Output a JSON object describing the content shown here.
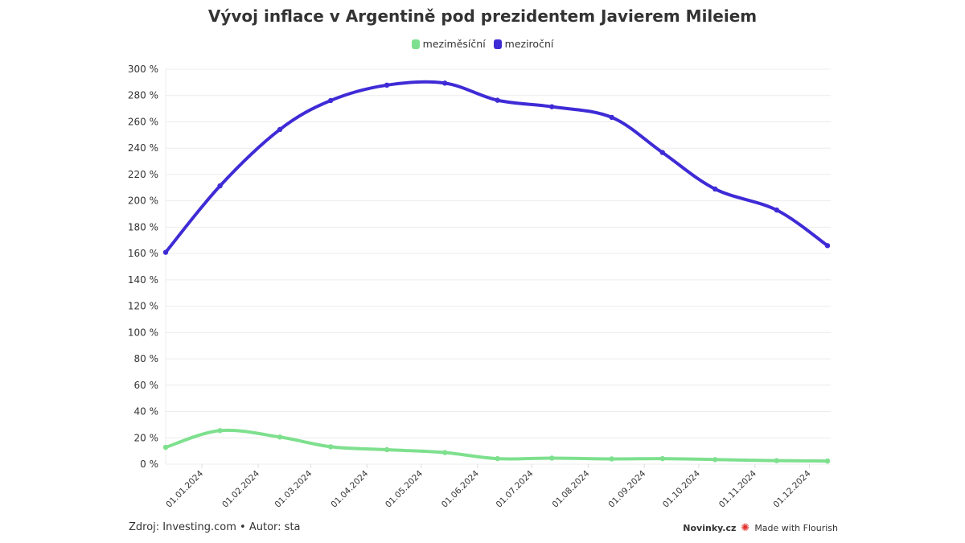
{
  "chart_data": {
    "type": "line",
    "title": "Vývoj inflace v Argentině pod prezidentem Javierem Mileiem",
    "xlabel": "",
    "ylabel": "",
    "ylim": [
      0,
      300
    ],
    "xlim": [
      "2023-12-12",
      "2024-12-11"
    ],
    "grid": true,
    "legend_position": "top",
    "y_ticks": [
      "0 %",
      "20 %",
      "40 %",
      "60 %",
      "80 %",
      "100 %",
      "120 %",
      "140 %",
      "160 %",
      "180 %",
      "200 %",
      "220 %",
      "240 %",
      "260 %",
      "280 %",
      "300 %"
    ],
    "x_ticks": [
      "01.01.2024",
      "01.02.2024",
      "01.03.2024",
      "01.04.2024",
      "01.05.2024",
      "01.06.2024",
      "01.07.2024",
      "01.08.2024",
      "01.09.2024",
      "01.10.2024",
      "01.11.2024",
      "01.12.2024"
    ],
    "x": [
      "2023-12-12",
      "2024-01-11",
      "2024-02-13",
      "2024-03-12",
      "2024-04-12",
      "2024-05-14",
      "2024-06-12",
      "2024-07-12",
      "2024-08-14",
      "2024-09-11",
      "2024-10-10",
      "2024-11-13",
      "2024-12-11"
    ],
    "series": [
      {
        "name": "meziměsíční",
        "color": "#7ee08e",
        "values": [
          12.8,
          25.5,
          20.6,
          13.2,
          11.0,
          8.8,
          4.2,
          4.6,
          4.0,
          4.2,
          3.5,
          2.7,
          2.4
        ]
      },
      {
        "name": "meziroční",
        "color": "#3f2bd6",
        "values": [
          160.9,
          211.4,
          254.2,
          276.2,
          287.9,
          289.4,
          276.4,
          271.5,
          263.4,
          236.7,
          209.0,
          193.0,
          166.0
        ]
      }
    ]
  },
  "footer": {
    "source": "Zdroj: Investing.com • Autor: sta",
    "brand": "Novinky.cz",
    "made_with": "Made with Flourish"
  }
}
